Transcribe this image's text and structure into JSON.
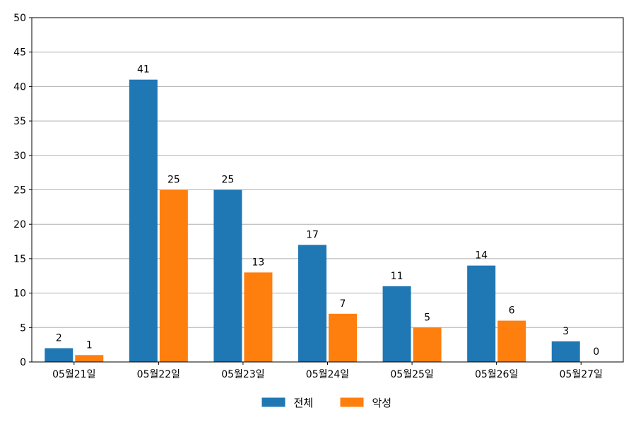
{
  "chart_data": {
    "type": "bar",
    "title": "",
    "xlabel": "",
    "ylabel": "",
    "categories": [
      "05월21일",
      "05월22일",
      "05월23일",
      "05월24일",
      "05월25일",
      "05월26일",
      "05월27일"
    ],
    "series": [
      {
        "name": "전체",
        "color": "#1f77b4",
        "values": [
          2,
          41,
          25,
          17,
          11,
          14,
          3
        ]
      },
      {
        "name": "악성",
        "color": "#ff7f0e",
        "values": [
          1,
          25,
          13,
          7,
          5,
          6,
          0
        ]
      }
    ],
    "ylim": [
      0,
      50
    ],
    "yticks": [
      0,
      5,
      10,
      15,
      20,
      25,
      30,
      35,
      40,
      45,
      50
    ],
    "grid": "horizontal",
    "legend": "bottom-center",
    "data_labels": true
  }
}
